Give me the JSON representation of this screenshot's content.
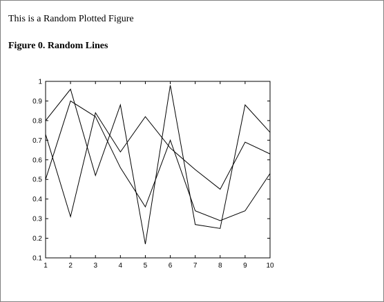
{
  "page": {
    "intro_text": "This is a Random Plotted Figure",
    "figure_title": "Figure 0. Random Lines"
  },
  "chart_data": {
    "type": "line",
    "title": "",
    "xlabel": "",
    "ylabel": "",
    "xlim": [
      1,
      10
    ],
    "ylim": [
      0.1,
      1
    ],
    "grid": false,
    "x": [
      1,
      2,
      3,
      4,
      5,
      6,
      7,
      8,
      9,
      10
    ],
    "xticks": [
      "1",
      "2",
      "3",
      "4",
      "5",
      "6",
      "7",
      "8",
      "9",
      "10"
    ],
    "yticks": [
      0.1,
      0.2,
      0.3,
      0.4,
      0.5,
      0.6,
      0.7,
      0.8,
      0.9,
      1
    ],
    "ytick_labels": [
      "0.1",
      "0.2",
      "0.3",
      "0.4",
      "0.5",
      "0.6",
      "0.7",
      "0.8",
      "0.9",
      "1"
    ],
    "series": [
      {
        "values": [
          0.8,
          0.96,
          0.52,
          0.88,
          0.17,
          0.98,
          0.27,
          0.25,
          0.88,
          0.74
        ]
      },
      {
        "values": [
          0.73,
          0.31,
          0.84,
          0.64,
          0.82,
          0.66,
          0.55,
          0.45,
          0.69,
          0.63
        ]
      },
      {
        "values": [
          0.5,
          0.9,
          0.82,
          0.56,
          0.36,
          0.7,
          0.34,
          0.29,
          0.34,
          0.53
        ]
      }
    ],
    "line_color": "#000000"
  }
}
